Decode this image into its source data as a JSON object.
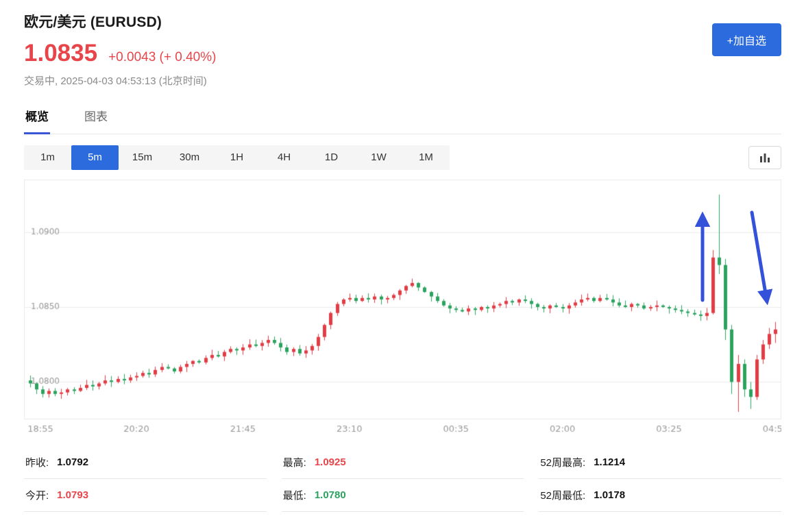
{
  "colors": {
    "red": "#e8454a",
    "green": "#2ba35f",
    "dark": "#111111",
    "accent_blue": "#2b6bde",
    "arrow_blue": "#3452d9",
    "tab_underline": "#3a56d4",
    "grid": "#ececec",
    "tick_text": "#999999"
  },
  "header": {
    "title": "欧元/美元 (EURUSD)",
    "price": "1.0835",
    "change": "+0.0043 (+ 0.40%)",
    "status": "交易中, 2025-04-03 04:53:13 (北京时间)",
    "watchlist_button": "+加自选"
  },
  "tabs": [
    {
      "label": "概览",
      "active": true
    },
    {
      "label": "图表",
      "active": false
    }
  ],
  "timeframes": [
    {
      "label": "1m",
      "active": false
    },
    {
      "label": "5m",
      "active": true
    },
    {
      "label": "15m",
      "active": false
    },
    {
      "label": "30m",
      "active": false
    },
    {
      "label": "1H",
      "active": false
    },
    {
      "label": "4H",
      "active": false
    },
    {
      "label": "1D",
      "active": false
    },
    {
      "label": "1W",
      "active": false
    },
    {
      "label": "1M",
      "active": false
    }
  ],
  "chart_data": {
    "type": "candlestick",
    "symbol": "EURUSD",
    "interval": "5m",
    "ylim": [
      1.0775,
      1.0935
    ],
    "up_color": "#e23c45",
    "down_color": "#2ba35f",
    "y_ticks": [
      {
        "value": 1.09,
        "label": "1.0900"
      },
      {
        "value": 1.085,
        "label": "1.0850"
      },
      {
        "value": 1.08,
        "label": "1.0800"
      }
    ],
    "x_ticks": [
      {
        "index": 0,
        "label": "18:55"
      },
      {
        "index": 17,
        "label": "20:20"
      },
      {
        "index": 34,
        "label": "21:45"
      },
      {
        "index": 51,
        "label": "23:10"
      },
      {
        "index": 68,
        "label": "00:35"
      },
      {
        "index": 85,
        "label": "02:00"
      },
      {
        "index": 102,
        "label": "03:25"
      },
      {
        "index": 119,
        "label": "04:50"
      }
    ],
    "closes": [
      1.0799,
      1.0795,
      1.0792,
      1.0794,
      1.0792,
      1.0793,
      1.0795,
      1.0794,
      1.0796,
      1.0798,
      1.0797,
      1.0799,
      1.0801,
      1.08,
      1.0802,
      1.0801,
      1.0803,
      1.0804,
      1.0806,
      1.0805,
      1.0808,
      1.081,
      1.0809,
      1.0807,
      1.081,
      1.0812,
      1.0814,
      1.0813,
      1.0816,
      1.0818,
      1.0817,
      1.082,
      1.0822,
      1.0821,
      1.0823,
      1.0825,
      1.0824,
      1.0826,
      1.0828,
      1.0826,
      1.0823,
      1.082,
      1.0822,
      1.0819,
      1.0821,
      1.0824,
      1.083,
      1.0838,
      1.0846,
      1.0852,
      1.0855,
      1.0856,
      1.0854,
      1.0856,
      1.0855,
      1.0857,
      1.0855,
      1.0856,
      1.0858,
      1.0861,
      1.0864,
      1.0866,
      1.0863,
      1.086,
      1.0857,
      1.0854,
      1.0851,
      1.0849,
      1.0848,
      1.0847,
      1.0849,
      1.0848,
      1.085,
      1.0849,
      1.0851,
      1.0852,
      1.0854,
      1.0853,
      1.0855,
      1.0854,
      1.0852,
      1.085,
      1.0849,
      1.0851,
      1.085,
      1.0849,
      1.0851,
      1.0853,
      1.0855,
      1.0856,
      1.0854,
      1.0856,
      1.0855,
      1.0853,
      1.0851,
      1.085,
      1.0852,
      1.0851,
      1.0849,
      1.085,
      1.0851,
      1.085,
      1.0849,
      1.0848,
      1.0847,
      1.0846,
      1.0845,
      1.0844,
      1.0846,
      1.0883,
      1.0878,
      1.0835,
      1.08,
      1.0812,
      1.0795,
      1.079,
      1.0815,
      1.0825,
      1.0832,
      1.0835
    ],
    "ohlc_overrides": {
      "109": [
        1.0846,
        1.0888,
        1.0845,
        1.0883
      ],
      "110": [
        1.0883,
        1.0925,
        1.0872,
        1.0878
      ],
      "111": [
        1.0878,
        1.0882,
        1.0828,
        1.0835
      ],
      "112": [
        1.0835,
        1.0838,
        1.0792,
        1.08
      ],
      "113": [
        1.08,
        1.0818,
        1.078,
        1.0812
      ],
      "114": [
        1.0812,
        1.0815,
        1.079,
        1.0795
      ],
      "115": [
        1.0795,
        1.08,
        1.0782,
        1.079
      ],
      "116": [
        1.079,
        1.0818,
        1.0788,
        1.0815
      ],
      "117": [
        1.0815,
        1.0828,
        1.0812,
        1.0825
      ],
      "118": [
        1.0825,
        1.0836,
        1.0822,
        1.0832
      ],
      "119": [
        1.0832,
        1.084,
        1.0826,
        1.0835
      ]
    },
    "annotations": [
      {
        "shape": "arrow",
        "direction": "up",
        "color": "#3452d9"
      },
      {
        "shape": "arrow",
        "direction": "down",
        "color": "#3452d9"
      }
    ]
  },
  "stats": [
    {
      "rows": [
        {
          "label": "昨收:",
          "value": "1.0792",
          "value_color": "dark"
        },
        {
          "label": "今开:",
          "value": "1.0793",
          "value_color": "red"
        }
      ]
    },
    {
      "rows": [
        {
          "label": "最高:",
          "value": "1.0925",
          "value_color": "red"
        },
        {
          "label": "最低:",
          "value": "1.0780",
          "value_color": "green"
        }
      ]
    },
    {
      "rows": [
        {
          "label": "52周最高:",
          "value": "1.1214",
          "value_color": "dark"
        },
        {
          "label": "52周最低:",
          "value": "1.0178",
          "value_color": "dark"
        }
      ]
    }
  ]
}
